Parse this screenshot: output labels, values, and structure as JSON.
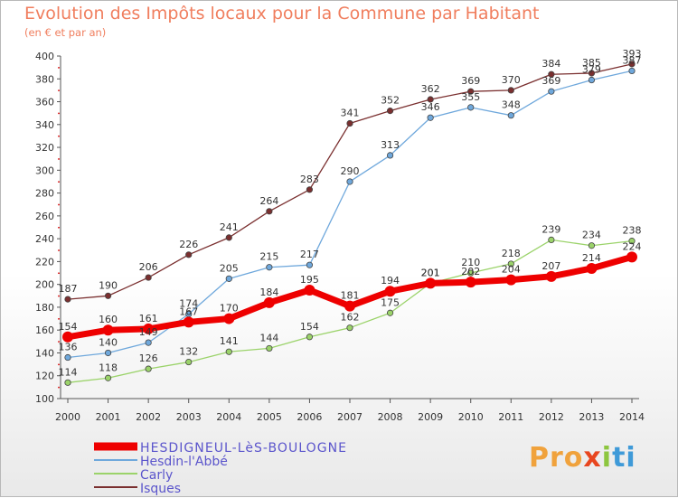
{
  "chart_data": {
    "type": "line",
    "title": "Evolution des Impôts locaux pour la Commune par Habitant",
    "subtitle": "(en € et par an)",
    "x": [
      "2000",
      "2001",
      "2002",
      "2003",
      "2004",
      "2005",
      "2006",
      "2007",
      "2008",
      "2009",
      "2010",
      "2011",
      "2012",
      "2013",
      "2014"
    ],
    "ylim": [
      100,
      400
    ],
    "yticks": [
      100,
      120,
      140,
      160,
      180,
      200,
      220,
      240,
      260,
      280,
      300,
      320,
      340,
      360,
      380,
      400
    ],
    "grid": false,
    "legend_position": "bottom-left",
    "series": [
      {
        "name": "HESDIGNEUL-LèS-BOULOGNE",
        "color": "#ee0000",
        "values": [
          154,
          160,
          161,
          167,
          170,
          184,
          195,
          181,
          194,
          201,
          202,
          204,
          207,
          214,
          224
        ]
      },
      {
        "name": "Hesdin-l'Abbé",
        "color": "#6fa8dc",
        "values": [
          136,
          140,
          149,
          174,
          205,
          215,
          217,
          290,
          313,
          346,
          355,
          348,
          369,
          379,
          387
        ]
      },
      {
        "name": "Carly",
        "color": "#9bd36a",
        "values": [
          114,
          118,
          126,
          132,
          141,
          144,
          154,
          162,
          175,
          201,
          210,
          218,
          239,
          234,
          238
        ]
      },
      {
        "name": "Isques",
        "color": "#7a2f2f",
        "values": [
          187,
          190,
          206,
          226,
          241,
          264,
          283,
          341,
          352,
          362,
          369,
          370,
          384,
          385,
          393
        ]
      }
    ]
  },
  "branding": {
    "logo_text": [
      "Pro",
      "x",
      "i",
      "ti"
    ]
  }
}
